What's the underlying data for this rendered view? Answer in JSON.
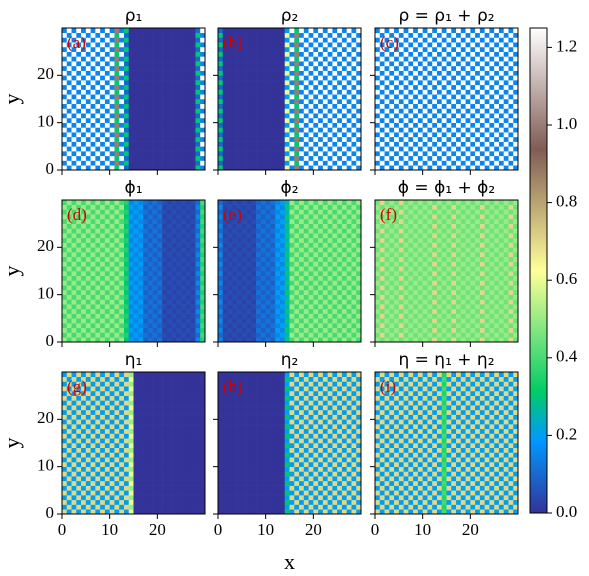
{
  "chart_data": [
    {
      "type": "heatmap",
      "title": "ρ₁",
      "label": "(a)",
      "values": [
        [
          1.25,
          0.15
        ],
        [
          1.25,
          0.15
        ],
        [
          1.25,
          0.15
        ],
        [
          1.25,
          0.15
        ],
        [
          1.25,
          0.15
        ],
        [
          1.25,
          0.15
        ],
        [
          1.25,
          0.15
        ],
        [
          1.25,
          0.15
        ],
        [
          1.25,
          0.15
        ],
        [
          1.25,
          0.15
        ],
        [
          1.25,
          0.15
        ],
        [
          1.0,
          0.3
        ],
        [
          1.25,
          0.15
        ],
        [
          0.3,
          0.1
        ],
        [
          0,
          0
        ],
        [
          0,
          0
        ],
        [
          0,
          0
        ],
        [
          0,
          0
        ],
        [
          0,
          0
        ],
        [
          0,
          0
        ],
        [
          0,
          0
        ],
        [
          0,
          0
        ],
        [
          0,
          0
        ],
        [
          0,
          0
        ],
        [
          0,
          0
        ],
        [
          0,
          0
        ],
        [
          0,
          0
        ],
        [
          0,
          0
        ],
        [
          0.3,
          0.1
        ],
        [
          1.25,
          0.15
        ]
      ]
    },
    {
      "type": "heatmap",
      "title": "ρ₂",
      "label": "(b)",
      "values": [
        [
          0.3,
          0.1
        ],
        [
          0,
          0
        ],
        [
          0,
          0
        ],
        [
          0,
          0
        ],
        [
          0,
          0
        ],
        [
          0,
          0
        ],
        [
          0,
          0
        ],
        [
          0,
          0
        ],
        [
          0,
          0
        ],
        [
          0,
          0
        ],
        [
          0,
          0
        ],
        [
          0,
          0
        ],
        [
          0,
          0
        ],
        [
          0,
          0
        ],
        [
          0.6,
          0.2
        ],
        [
          1.25,
          0.15
        ],
        [
          1.0,
          0.3
        ],
        [
          1.25,
          0.15
        ],
        [
          1.25,
          0.15
        ],
        [
          1.25,
          0.15
        ],
        [
          1.25,
          0.15
        ],
        [
          1.25,
          0.15
        ],
        [
          1.25,
          0.15
        ],
        [
          1.25,
          0.15
        ],
        [
          1.25,
          0.15
        ],
        [
          1.25,
          0.15
        ],
        [
          1.25,
          0.15
        ],
        [
          1.25,
          0.15
        ],
        [
          1.25,
          0.15
        ],
        [
          1.25,
          0.15
        ]
      ]
    },
    {
      "type": "heatmap",
      "title": "ρ = ρ₁ + ρ₂",
      "label": "(c)",
      "values": [
        [
          1.25,
          0.15
        ],
        [
          1.25,
          0.15
        ],
        [
          1.25,
          0.15
        ],
        [
          1.25,
          0.15
        ],
        [
          1.25,
          0.15
        ],
        [
          1.25,
          0.15
        ],
        [
          1.25,
          0.15
        ],
        [
          1.25,
          0.15
        ],
        [
          1.25,
          0.15
        ],
        [
          1.25,
          0.15
        ],
        [
          1.25,
          0.15
        ],
        [
          1.25,
          0.15
        ],
        [
          1.25,
          0.15
        ],
        [
          1.25,
          0.15
        ],
        [
          1.25,
          0.15
        ],
        [
          1.25,
          0.15
        ],
        [
          1.25,
          0.15
        ],
        [
          1.25,
          0.15
        ],
        [
          1.25,
          0.15
        ],
        [
          1.25,
          0.15
        ],
        [
          1.25,
          0.15
        ],
        [
          1.25,
          0.15
        ],
        [
          1.25,
          0.15
        ],
        [
          1.25,
          0.15
        ],
        [
          1.25,
          0.15
        ],
        [
          1.25,
          0.15
        ],
        [
          1.25,
          0.15
        ],
        [
          1.25,
          0.15
        ],
        [
          1.25,
          0.15
        ],
        [
          1.25,
          0.15
        ]
      ]
    },
    {
      "type": "heatmap",
      "title": "ϕ₁",
      "label": "(d)",
      "values": [
        [
          0.5,
          0.4
        ],
        [
          0.5,
          0.4
        ],
        [
          0.5,
          0.4
        ],
        [
          0.5,
          0.4
        ],
        [
          0.5,
          0.4
        ],
        [
          0.5,
          0.4
        ],
        [
          0.5,
          0.4
        ],
        [
          0.5,
          0.4
        ],
        [
          0.5,
          0.4
        ],
        [
          0.5,
          0.4
        ],
        [
          0.5,
          0.4
        ],
        [
          0.5,
          0.4
        ],
        [
          0.5,
          0.4
        ],
        [
          0.35,
          0.3
        ],
        [
          0.2,
          0.15
        ],
        [
          0.2,
          0.15
        ],
        [
          0.2,
          0.15
        ],
        [
          0.12,
          0.08
        ],
        [
          0.12,
          0.08
        ],
        [
          0.12,
          0.08
        ],
        [
          0.12,
          0.08
        ],
        [
          0.05,
          0.03
        ],
        [
          0.05,
          0.03
        ],
        [
          0.05,
          0.03
        ],
        [
          0.05,
          0.03
        ],
        [
          0.05,
          0.03
        ],
        [
          0.05,
          0.03
        ],
        [
          0.05,
          0.03
        ],
        [
          0.15,
          0.1
        ],
        [
          0.4,
          0.35
        ]
      ]
    },
    {
      "type": "heatmap",
      "title": "ϕ₂",
      "label": "(e)",
      "values": [
        [
          0.15,
          0.1
        ],
        [
          0.05,
          0.03
        ],
        [
          0.05,
          0.03
        ],
        [
          0.05,
          0.03
        ],
        [
          0.05,
          0.03
        ],
        [
          0.05,
          0.03
        ],
        [
          0.05,
          0.03
        ],
        [
          0.05,
          0.03
        ],
        [
          0.12,
          0.08
        ],
        [
          0.12,
          0.08
        ],
        [
          0.12,
          0.08
        ],
        [
          0.12,
          0.08
        ],
        [
          0.2,
          0.15
        ],
        [
          0.2,
          0.15
        ],
        [
          0.3,
          0.25
        ],
        [
          0.5,
          0.4
        ],
        [
          0.5,
          0.4
        ],
        [
          0.5,
          0.4
        ],
        [
          0.5,
          0.4
        ],
        [
          0.5,
          0.4
        ],
        [
          0.5,
          0.4
        ],
        [
          0.5,
          0.4
        ],
        [
          0.5,
          0.4
        ],
        [
          0.5,
          0.4
        ],
        [
          0.5,
          0.4
        ],
        [
          0.5,
          0.4
        ],
        [
          0.5,
          0.4
        ],
        [
          0.5,
          0.4
        ],
        [
          0.5,
          0.4
        ],
        [
          0.5,
          0.4
        ]
      ]
    },
    {
      "type": "heatmap",
      "title": "ϕ = ϕ₁ + ϕ₂",
      "label": "(f)",
      "values": [
        [
          0.5,
          0.45
        ],
        [
          0.7,
          0.45
        ],
        [
          0.5,
          0.45
        ],
        [
          0.5,
          0.45
        ],
        [
          0.5,
          0.45
        ],
        [
          0.7,
          0.45
        ],
        [
          0.5,
          0.45
        ],
        [
          0.5,
          0.45
        ],
        [
          0.5,
          0.45
        ],
        [
          0.5,
          0.45
        ],
        [
          0.5,
          0.45
        ],
        [
          0.5,
          0.45
        ],
        [
          0.7,
          0.45
        ],
        [
          0.5,
          0.45
        ],
        [
          0.5,
          0.45
        ],
        [
          0.5,
          0.45
        ],
        [
          0.7,
          0.45
        ],
        [
          0.5,
          0.45
        ],
        [
          0.5,
          0.45
        ],
        [
          0.5,
          0.45
        ],
        [
          0.5,
          0.45
        ],
        [
          0.5,
          0.45
        ],
        [
          0.7,
          0.45
        ],
        [
          0.5,
          0.45
        ],
        [
          0.5,
          0.45
        ],
        [
          0.5,
          0.45
        ],
        [
          0.5,
          0.45
        ],
        [
          0.5,
          0.45
        ],
        [
          0.7,
          0.45
        ],
        [
          0.5,
          0.45
        ]
      ]
    },
    {
      "type": "heatmap",
      "title": "η₁",
      "label": "(g)",
      "values": [
        [
          0.7,
          0.2
        ],
        [
          0.7,
          0.2
        ],
        [
          0.7,
          0.2
        ],
        [
          0.7,
          0.2
        ],
        [
          0.7,
          0.2
        ],
        [
          0.7,
          0.2
        ],
        [
          0.7,
          0.2
        ],
        [
          0.7,
          0.2
        ],
        [
          0.7,
          0.2
        ],
        [
          0.7,
          0.2
        ],
        [
          0.7,
          0.2
        ],
        [
          0.7,
          0.2
        ],
        [
          0.7,
          0.2
        ],
        [
          0.7,
          0.2
        ],
        [
          0.6,
          0.5
        ],
        [
          0,
          0
        ],
        [
          0,
          0
        ],
        [
          0,
          0
        ],
        [
          0,
          0
        ],
        [
          0,
          0
        ],
        [
          0,
          0
        ],
        [
          0,
          0
        ],
        [
          0,
          0
        ],
        [
          0,
          0
        ],
        [
          0,
          0
        ],
        [
          0,
          0
        ],
        [
          0,
          0
        ],
        [
          0,
          0
        ],
        [
          0,
          0
        ],
        [
          0,
          0
        ]
      ]
    },
    {
      "type": "heatmap",
      "title": "η₂",
      "label": "(h)",
      "values": [
        [
          0,
          0
        ],
        [
          0,
          0
        ],
        [
          0,
          0
        ],
        [
          0,
          0
        ],
        [
          0,
          0
        ],
        [
          0,
          0
        ],
        [
          0,
          0
        ],
        [
          0,
          0
        ],
        [
          0,
          0
        ],
        [
          0,
          0
        ],
        [
          0,
          0
        ],
        [
          0,
          0
        ],
        [
          0,
          0
        ],
        [
          0,
          0
        ],
        [
          0.3,
          0.2
        ],
        [
          0.7,
          0.2
        ],
        [
          0.7,
          0.2
        ],
        [
          0.7,
          0.2
        ],
        [
          0.7,
          0.2
        ],
        [
          0.7,
          0.2
        ],
        [
          0.7,
          0.2
        ],
        [
          0.7,
          0.2
        ],
        [
          0.7,
          0.2
        ],
        [
          0.7,
          0.2
        ],
        [
          0.7,
          0.2
        ],
        [
          0.7,
          0.2
        ],
        [
          0.7,
          0.2
        ],
        [
          0.7,
          0.2
        ],
        [
          0.7,
          0.2
        ],
        [
          0.7,
          0.2
        ]
      ]
    },
    {
      "type": "heatmap",
      "title": "η = η₁ + η₂",
      "label": "(i)",
      "values": [
        [
          0.7,
          0.2
        ],
        [
          0.7,
          0.2
        ],
        [
          0.7,
          0.2
        ],
        [
          0.7,
          0.2
        ],
        [
          0.7,
          0.2
        ],
        [
          0.7,
          0.2
        ],
        [
          0.7,
          0.2
        ],
        [
          0.7,
          0.2
        ],
        [
          0.7,
          0.2
        ],
        [
          0.7,
          0.2
        ],
        [
          0.7,
          0.2
        ],
        [
          0.7,
          0.2
        ],
        [
          0.7,
          0.2
        ],
        [
          0.7,
          0.2
        ],
        [
          0.4,
          0.35
        ],
        [
          0.7,
          0.2
        ],
        [
          0.7,
          0.2
        ],
        [
          0.7,
          0.2
        ],
        [
          0.7,
          0.2
        ],
        [
          0.7,
          0.2
        ],
        [
          0.7,
          0.2
        ],
        [
          0.7,
          0.2
        ],
        [
          0.7,
          0.2
        ],
        [
          0.7,
          0.2
        ],
        [
          0.7,
          0.2
        ],
        [
          0.7,
          0.2
        ],
        [
          0.7,
          0.2
        ],
        [
          0.7,
          0.2
        ],
        [
          0.7,
          0.2
        ],
        [
          0.7,
          0.2
        ]
      ]
    }
  ],
  "axes": {
    "xlabel": "x",
    "ylabel": "y",
    "xlim": [
      0,
      29
    ],
    "ylim": [
      0,
      29
    ],
    "xticks": [
      0,
      10,
      20
    ],
    "yticks": [
      0,
      10,
      20
    ]
  },
  "colorbar": {
    "lim": [
      0,
      1.25
    ],
    "ticks": [
      {
        "value": 0,
        "label": "0.0"
      },
      {
        "value": 0.2,
        "label": "0.2"
      },
      {
        "value": 0.4,
        "label": "0.4"
      },
      {
        "value": 0.6,
        "label": "0.6"
      },
      {
        "value": 0.8,
        "label": "0.8"
      },
      {
        "value": 1.0,
        "label": "1.0"
      },
      {
        "value": 1.2,
        "label": "1.2"
      }
    ],
    "colormap": [
      {
        "at": 0,
        "color": "#333399"
      },
      {
        "at": 0.1875,
        "color": "#0099ff"
      },
      {
        "at": 0.3125,
        "color": "#00cc66"
      },
      {
        "at": 0.625,
        "color": "#ffff99"
      },
      {
        "at": 0.9375,
        "color": "#805c54"
      },
      {
        "at": 1.25,
        "color": "#ffffff"
      }
    ]
  }
}
